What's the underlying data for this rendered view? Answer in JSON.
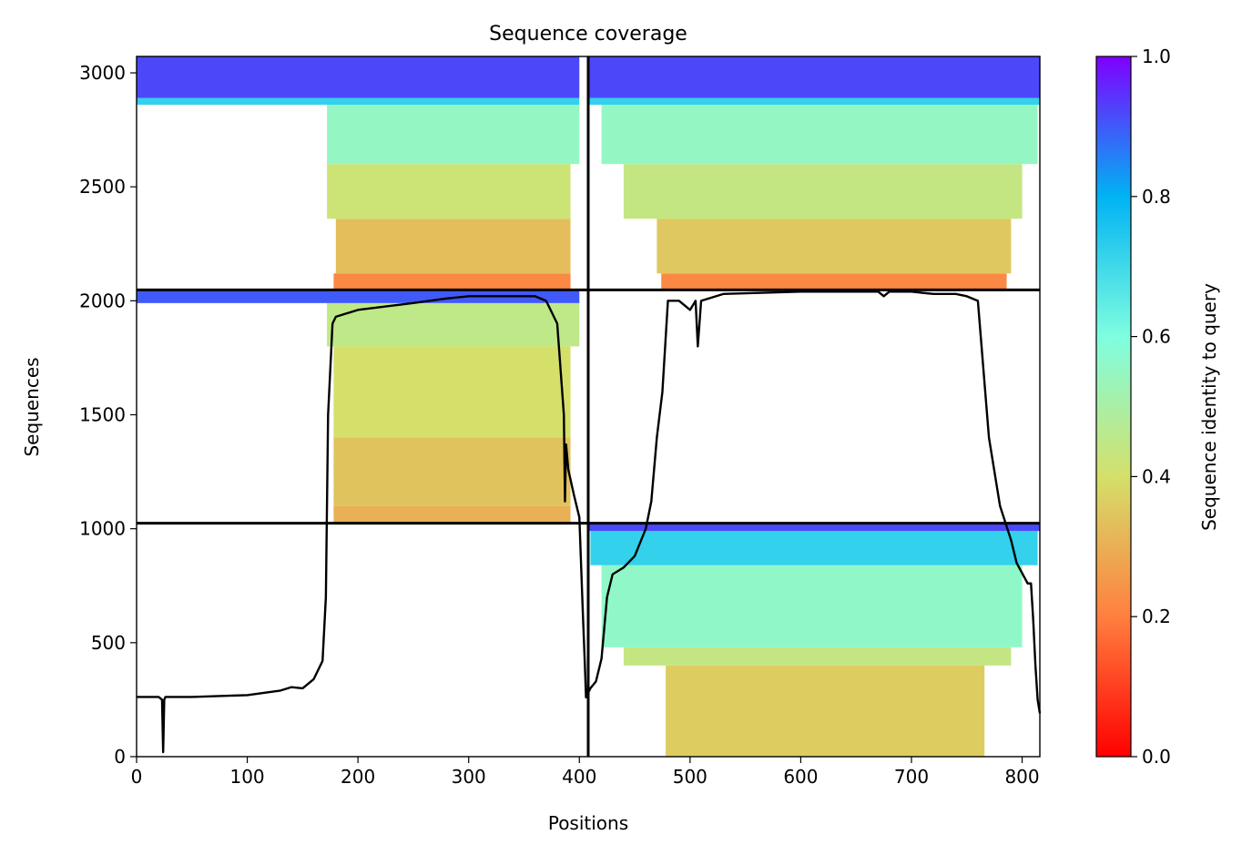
{
  "chart_data": {
    "type": "heatmap",
    "title": "Sequence coverage",
    "xlabel": "Positions",
    "ylabel": "Sequences",
    "xlim": [
      0,
      816
    ],
    "ylim": [
      0,
      3072
    ],
    "xticks": [
      0,
      100,
      200,
      300,
      400,
      500,
      600,
      700,
      800
    ],
    "yticks": [
      0,
      500,
      1000,
      1500,
      2000,
      2500,
      3000
    ],
    "grid": false,
    "colorbar": {
      "label": "Sequence identity to query",
      "range": [
        0.0,
        1.0
      ],
      "ticks": [
        "0.0",
        "0.2",
        "0.4",
        "0.6",
        "0.8",
        "1.0"
      ],
      "colormap": "rainbow_r",
      "colors": [
        "#ff0000",
        "#ff7f3f",
        "#d4e06a",
        "#7ffee0",
        "#00b3f3",
        "#7f00ff"
      ]
    },
    "separators": {
      "vertical_at_position": 408,
      "horizontal_at_sequences": [
        1024,
        2048
      ]
    },
    "blocks": [
      {
        "name": "left-bottom",
        "x": [
          0,
          408
        ],
        "y": [
          0,
          1024
        ],
        "bands": []
      },
      {
        "name": "left-middle",
        "x": [
          0,
          408
        ],
        "y": [
          1024,
          2048
        ],
        "bands": [
          {
            "y": [
              1024,
              1100
            ],
            "x": [
              178,
              392
            ],
            "identity": 0.3
          },
          {
            "y": [
              1100,
              1400
            ],
            "x": [
              178,
              392
            ],
            "identity": 0.34
          },
          {
            "y": [
              1400,
              1800
            ],
            "x": [
              178,
              392
            ],
            "identity": 0.4
          },
          {
            "y": [
              1800,
              1990
            ],
            "x": [
              172,
              400
            ],
            "identity": 0.45
          },
          {
            "y": [
              1990,
              2048
            ],
            "x": [
              0,
              400
            ],
            "identity": 0.9
          }
        ]
      },
      {
        "name": "left-top",
        "x": [
          0,
          408
        ],
        "y": [
          2048,
          3072
        ],
        "bands": [
          {
            "y": [
              2048,
              2120
            ],
            "x": [
              178,
              392
            ],
            "identity": 0.22
          },
          {
            "y": [
              2120,
              2360
            ],
            "x": [
              180,
              392
            ],
            "identity": 0.33
          },
          {
            "y": [
              2360,
              2600
            ],
            "x": [
              172,
              392
            ],
            "identity": 0.42
          },
          {
            "y": [
              2600,
              2860
            ],
            "x": [
              172,
              400
            ],
            "identity": 0.55
          },
          {
            "y": [
              2860,
              2890
            ],
            "x": [
              0,
              400
            ],
            "identity": 0.72
          },
          {
            "y": [
              2890,
              3072
            ],
            "x": [
              0,
              400
            ],
            "identity": 0.92
          }
        ]
      },
      {
        "name": "right-bottom",
        "x": [
          408,
          816
        ],
        "y": [
          0,
          1024
        ],
        "bands": [
          {
            "y": [
              0,
              400
            ],
            "x": [
              478,
              766
            ],
            "identity": 0.36
          },
          {
            "y": [
              400,
              480
            ],
            "x": [
              440,
              790
            ],
            "identity": 0.44
          },
          {
            "y": [
              480,
              840
            ],
            "x": [
              420,
              800
            ],
            "identity": 0.56
          },
          {
            "y": [
              840,
              990
            ],
            "x": [
              410,
              814
            ],
            "identity": 0.72
          },
          {
            "y": [
              990,
              1024
            ],
            "x": [
              408,
              816
            ],
            "identity": 0.92
          }
        ]
      },
      {
        "name": "right-middle",
        "x": [
          408,
          816
        ],
        "y": [
          1024,
          2048
        ],
        "bands": []
      },
      {
        "name": "right-top",
        "x": [
          408,
          816
        ],
        "y": [
          2048,
          3072
        ],
        "bands": [
          {
            "y": [
              2048,
              2120
            ],
            "x": [
              474,
              786
            ],
            "identity": 0.22
          },
          {
            "y": [
              2120,
              2360
            ],
            "x": [
              470,
              790
            ],
            "identity": 0.35
          },
          {
            "y": [
              2360,
              2600
            ],
            "x": [
              440,
              800
            ],
            "identity": 0.44
          },
          {
            "y": [
              2600,
              2860
            ],
            "x": [
              420,
              814
            ],
            "identity": 0.55
          },
          {
            "y": [
              2860,
              2890
            ],
            "x": [
              408,
              816
            ],
            "identity": 0.72
          },
          {
            "y": [
              2890,
              3072
            ],
            "x": [
              408,
              816
            ],
            "identity": 0.92
          }
        ]
      }
    ],
    "coverage_line": {
      "x": [
        0,
        20,
        23,
        24,
        25,
        26,
        28,
        50,
        100,
        130,
        140,
        150,
        160,
        168,
        171,
        173,
        175,
        177,
        180,
        200,
        250,
        280,
        300,
        340,
        360,
        370,
        380,
        386,
        387,
        388,
        390,
        395,
        400,
        403,
        405,
        406,
        407,
        408,
        410,
        415,
        420,
        425,
        430,
        440,
        450,
        460,
        465,
        470,
        475,
        480,
        490,
        500,
        505,
        507,
        510,
        530,
        600,
        650,
        670,
        675,
        680,
        700,
        720,
        740,
        750,
        760,
        765,
        770,
        780,
        790,
        795,
        805,
        808,
        810,
        812,
        814,
        816
      ],
      "y": [
        262,
        262,
        250,
        20,
        250,
        262,
        262,
        262,
        270,
        290,
        305,
        300,
        340,
        420,
        700,
        1500,
        1700,
        1900,
        1930,
        1960,
        1990,
        2010,
        2020,
        2020,
        2020,
        2000,
        1900,
        1500,
        1120,
        1370,
        1260,
        1150,
        1050,
        650,
        400,
        260,
        270,
        280,
        300,
        330,
        430,
        700,
        800,
        830,
        880,
        1000,
        1120,
        1400,
        1600,
        2000,
        2000,
        1960,
        2000,
        1800,
        2000,
        2030,
        2040,
        2040,
        2040,
        2020,
        2040,
        2040,
        2030,
        2030,
        2020,
        2000,
        1700,
        1400,
        1100,
        950,
        850,
        760,
        760,
        600,
        400,
        250,
        190
      ]
    }
  }
}
